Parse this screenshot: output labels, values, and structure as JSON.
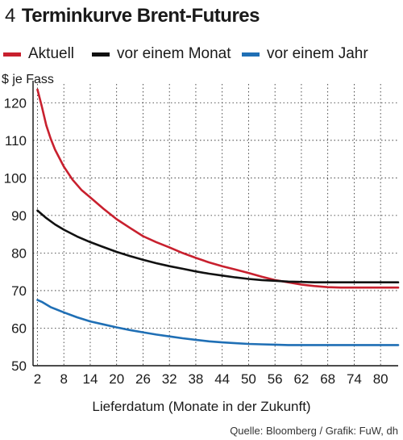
{
  "header": {
    "number": "4",
    "title": "Terminkurve Brent-Futures"
  },
  "source": "Quelle: Bloomberg / Grafik: FuW, dh",
  "chart_data": {
    "type": "line",
    "title": "Terminkurve Brent-Futures",
    "ylabel": "$ je Fass",
    "xlabel": "Lieferdatum (Monate in der Zukunft)",
    "xlim": [
      1,
      84
    ],
    "ylim": [
      50,
      125
    ],
    "x_ticks": [
      2,
      8,
      14,
      20,
      26,
      32,
      38,
      44,
      50,
      56,
      62,
      68,
      74,
      80
    ],
    "y_ticks": [
      50,
      60,
      70,
      80,
      90,
      100,
      110,
      120
    ],
    "grid": true,
    "legend": "top",
    "series": [
      {
        "name": "Aktuell",
        "color": "#c8202e",
        "x": [
          2,
          3,
          4,
          5,
          6,
          8,
          10,
          12,
          14,
          17,
          20,
          23,
          26,
          29,
          32,
          35,
          38,
          41,
          44,
          47,
          50,
          53,
          56,
          59,
          62,
          65,
          68,
          71,
          74,
          77,
          80,
          84
        ],
        "y": [
          123.5,
          119,
          114,
          110.5,
          107.5,
          103,
          99.5,
          96.8,
          94.8,
          91.8,
          89,
          86.7,
          84.5,
          82.9,
          81.5,
          80,
          78.7,
          77.5,
          76.5,
          75.6,
          74.7,
          73.7,
          72.8,
          72.2,
          71.6,
          71.2,
          70.9,
          70.8,
          70.8,
          70.8,
          70.8,
          70.8
        ]
      },
      {
        "name": "vor einem Monat",
        "color": "#111111",
        "x": [
          2,
          4,
          6,
          8,
          11,
          14,
          17,
          20,
          23,
          26,
          29,
          32,
          35,
          38,
          41,
          44,
          47,
          50,
          53,
          56,
          59,
          62,
          65,
          68,
          71,
          74,
          77,
          80,
          84
        ],
        "y": [
          91.3,
          89.3,
          87.6,
          86.2,
          84.4,
          82.9,
          81.6,
          80.3,
          79.2,
          78.2,
          77.3,
          76.5,
          75.8,
          75.1,
          74.5,
          74,
          73.5,
          73.1,
          72.8,
          72.6,
          72.4,
          72.3,
          72.2,
          72.2,
          72.2,
          72.2,
          72.2,
          72.2,
          72.2
        ]
      },
      {
        "name": "vor einem Jahr",
        "color": "#1f6fb5",
        "x": [
          2,
          3,
          5,
          8,
          11,
          14,
          17,
          20,
          23,
          26,
          29,
          32,
          35,
          38,
          41,
          44,
          47,
          50,
          53,
          56,
          59,
          62,
          65,
          68,
          71,
          74,
          77,
          80,
          84
        ],
        "y": [
          67.5,
          67,
          65.6,
          64.2,
          62.9,
          61.8,
          61,
          60.2,
          59.5,
          58.9,
          58.3,
          57.8,
          57.3,
          56.9,
          56.5,
          56.2,
          56,
          55.8,
          55.7,
          55.6,
          55.5,
          55.5,
          55.5,
          55.5,
          55.5,
          55.5,
          55.5,
          55.5,
          55.5
        ]
      }
    ]
  }
}
